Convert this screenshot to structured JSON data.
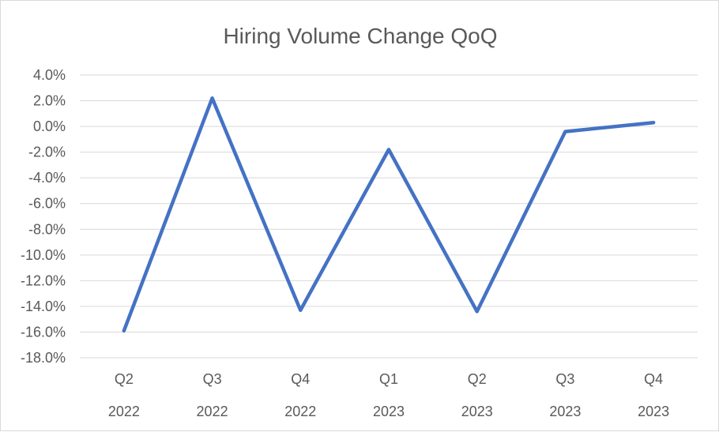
{
  "chart_data": {
    "type": "line",
    "title": "Hiring Volume Change QoQ",
    "categories": [
      [
        "Q2",
        "2022"
      ],
      [
        "Q3",
        "2022"
      ],
      [
        "Q4",
        "2022"
      ],
      [
        "Q1",
        "2023"
      ],
      [
        "Q2",
        "2023"
      ],
      [
        "Q3",
        "2023"
      ],
      [
        "Q4",
        "2023"
      ]
    ],
    "series": [
      {
        "values": [
          -15.9,
          2.2,
          -14.3,
          -1.8,
          -14.4,
          -0.4,
          0.3
        ]
      }
    ],
    "ylim": [
      -18.0,
      4.0
    ],
    "ytick_step": 2.0,
    "ytick_labels": [
      "4.0%",
      "2.0%",
      "0.0%",
      "-2.0%",
      "-4.0%",
      "-6.0%",
      "-8.0%",
      "-10.0%",
      "-12.0%",
      "-14.0%",
      "-16.0%",
      "-18.0%"
    ],
    "grid": true,
    "legend": "none",
    "colors": {
      "series": "#4472c4",
      "grid": "#d9d9d9",
      "text": "#595959"
    }
  }
}
